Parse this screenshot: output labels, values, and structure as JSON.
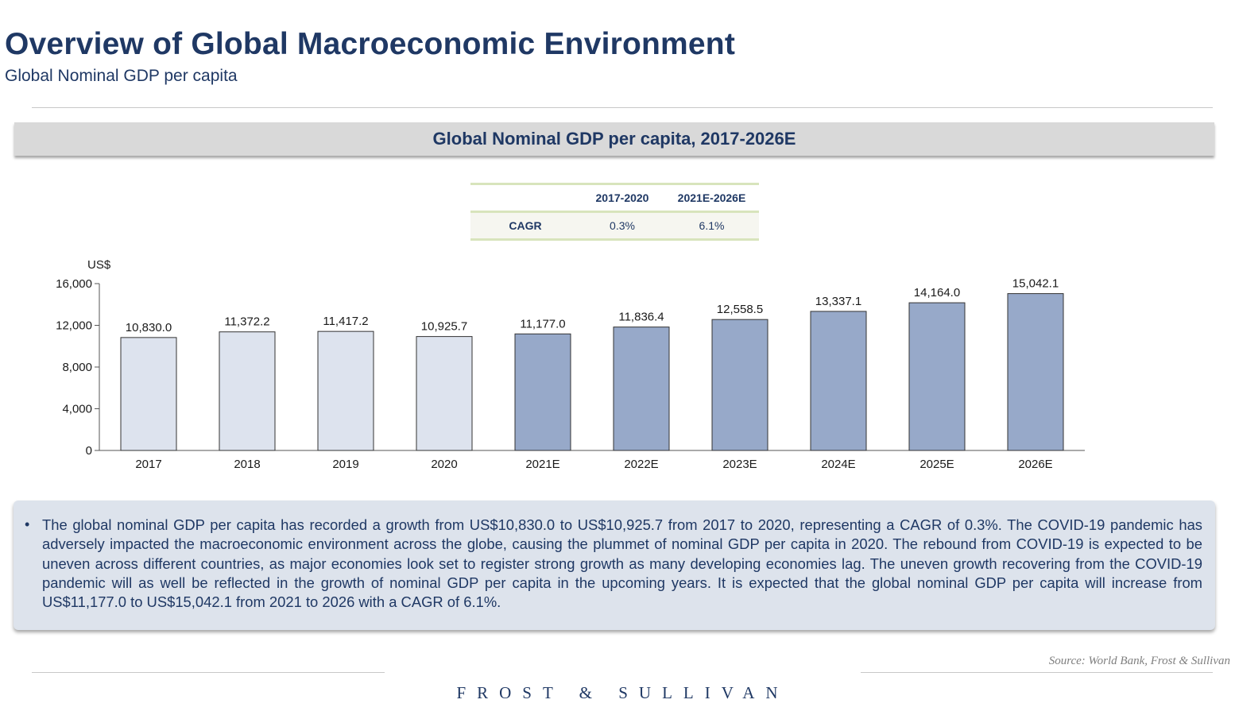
{
  "header": {
    "title": "Overview of Global Macroeconomic Environment",
    "subtitle": "Global Nominal GDP per capita"
  },
  "chart_banner": "Global Nominal GDP per capita, 2017-2026E",
  "cagr_table": {
    "columns": [
      "",
      "2017-2020",
      "2021E-2026E"
    ],
    "row_label": "CAGR",
    "values": [
      "0.3%",
      "6.1%"
    ]
  },
  "chart_data": {
    "type": "bar",
    "title": "Global Nominal GDP per capita, 2017-2026E",
    "ylabel": "US$",
    "xlabel": "",
    "categories": [
      "2017",
      "2018",
      "2019",
      "2020",
      "2021E",
      "2022E",
      "2023E",
      "2024E",
      "2025E",
      "2026E"
    ],
    "values": [
      10830.0,
      11372.2,
      11417.2,
      10925.7,
      11177.0,
      11836.4,
      12558.5,
      13337.1,
      14164.0,
      15042.1
    ],
    "value_labels": [
      "10,830.0",
      "11,372.2",
      "11,417.2",
      "10,925.7",
      "11,177.0",
      "11,836.4",
      "12,558.5",
      "13,337.1",
      "14,164.0",
      "15,042.1"
    ],
    "yticks": [
      0,
      4000,
      8000,
      12000,
      16000
    ],
    "ytick_labels": [
      "0",
      "4,000",
      "8,000",
      "12,000",
      "16,000"
    ],
    "ylim": [
      0,
      16000
    ],
    "grid": false,
    "colors": {
      "historical": "#dde3ee",
      "forecast": "#97a9c9",
      "outline": "#333333"
    }
  },
  "summary": {
    "bullet": "•",
    "text": "The global nominal GDP per capita has recorded a growth from US$10,830.0 to US$10,925.7 from 2017 to 2020, representing a CAGR of 0.3%. The COVID-19 pandemic has adversely impacted the macroeconomic environment across the globe, causing the plummet of nominal GDP per capita in 2020. The rebound from COVID-19 is expected to be uneven across different countries, as major economies look set to register strong growth as many developing economies lag. The uneven growth recovering from the COVID-19 pandemic will as well be reflected in the growth of nominal GDP per capita in the upcoming  years. It is expected that the global nominal GDP per capita will increase from US$11,177.0 to US$15,042.1 from 2021 to 2026 with a CAGR of 6.1%."
  },
  "footer": {
    "source": "Source: World Bank, Frost & Sullivan",
    "logo": "FROST & SULLIVAN"
  }
}
